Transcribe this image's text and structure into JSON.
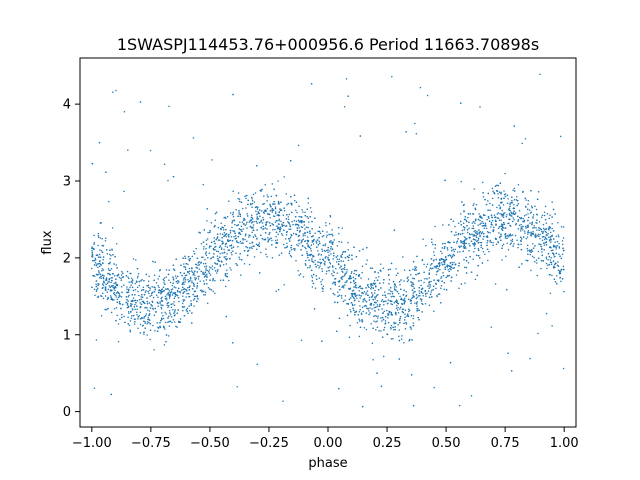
{
  "chart_data": {
    "type": "scatter",
    "title": "1SWASPJ114453.76+000956.6 Period 11663.70898s",
    "xlabel": "phase",
    "ylabel": "flux",
    "xlim": [
      -1.05,
      1.05
    ],
    "ylim": [
      -0.2,
      4.6
    ],
    "xticks": [
      -1.0,
      -0.75,
      -0.5,
      -0.25,
      0.0,
      0.25,
      0.5,
      0.75,
      1.0
    ],
    "xtick_labels": [
      "−1.00",
      "−0.75",
      "−0.50",
      "−0.25",
      "0.00",
      "0.25",
      "0.50",
      "0.75",
      "1.00"
    ],
    "yticks": [
      0,
      1,
      2,
      3,
      4
    ],
    "ytick_labels": [
      "0",
      "1",
      "2",
      "3",
      "4"
    ],
    "grid": false,
    "marker_color": "#1f77b4",
    "series": [
      {
        "x_range": [
          -1.0,
          1.0
        ],
        "model": "sinusoid",
        "mean_flux": 1.95,
        "amplitude": 0.55,
        "max_phase": [
          -0.25,
          0.75
        ],
        "min_phase": [
          -0.75,
          0.25
        ],
        "scatter_sigma": 0.22,
        "outlier_range": [
          0.0,
          4.4
        ]
      }
    ]
  }
}
